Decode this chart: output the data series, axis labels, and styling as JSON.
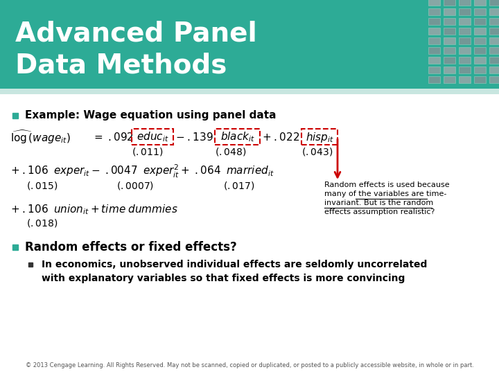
{
  "title": "Advanced Panel\nData Methods",
  "title_bg_color": "#2dab96",
  "title_text_color": "#ffffff",
  "bg_color": "#ffffff",
  "bullet_color": "#2dab96",
  "bullet1": "Example: Wage equation using panel data",
  "bullet2": "Random effects or fixed effects?",
  "sub_bullet_line1": "In economics, unobserved individual effects are seldomly uncorrelated",
  "sub_bullet_line2": "with explanatory variables so that fixed effects is more convincing",
  "footer": "© 2013 Cengage Learning. All Rights Reserved. May not be scanned, copied or duplicated, or posted to a publicly accessible website, in whole or in part.",
  "annotation_line1": "Random effects is used because",
  "annotation_line2": "many of the variables are time-",
  "annotation_line3": "invariant. But is the random",
  "annotation_line4": "effects assumption realistic?",
  "arrow_color": "#cc0000",
  "box_color": "#cc0000",
  "light_header_color": "#c8e6e0"
}
